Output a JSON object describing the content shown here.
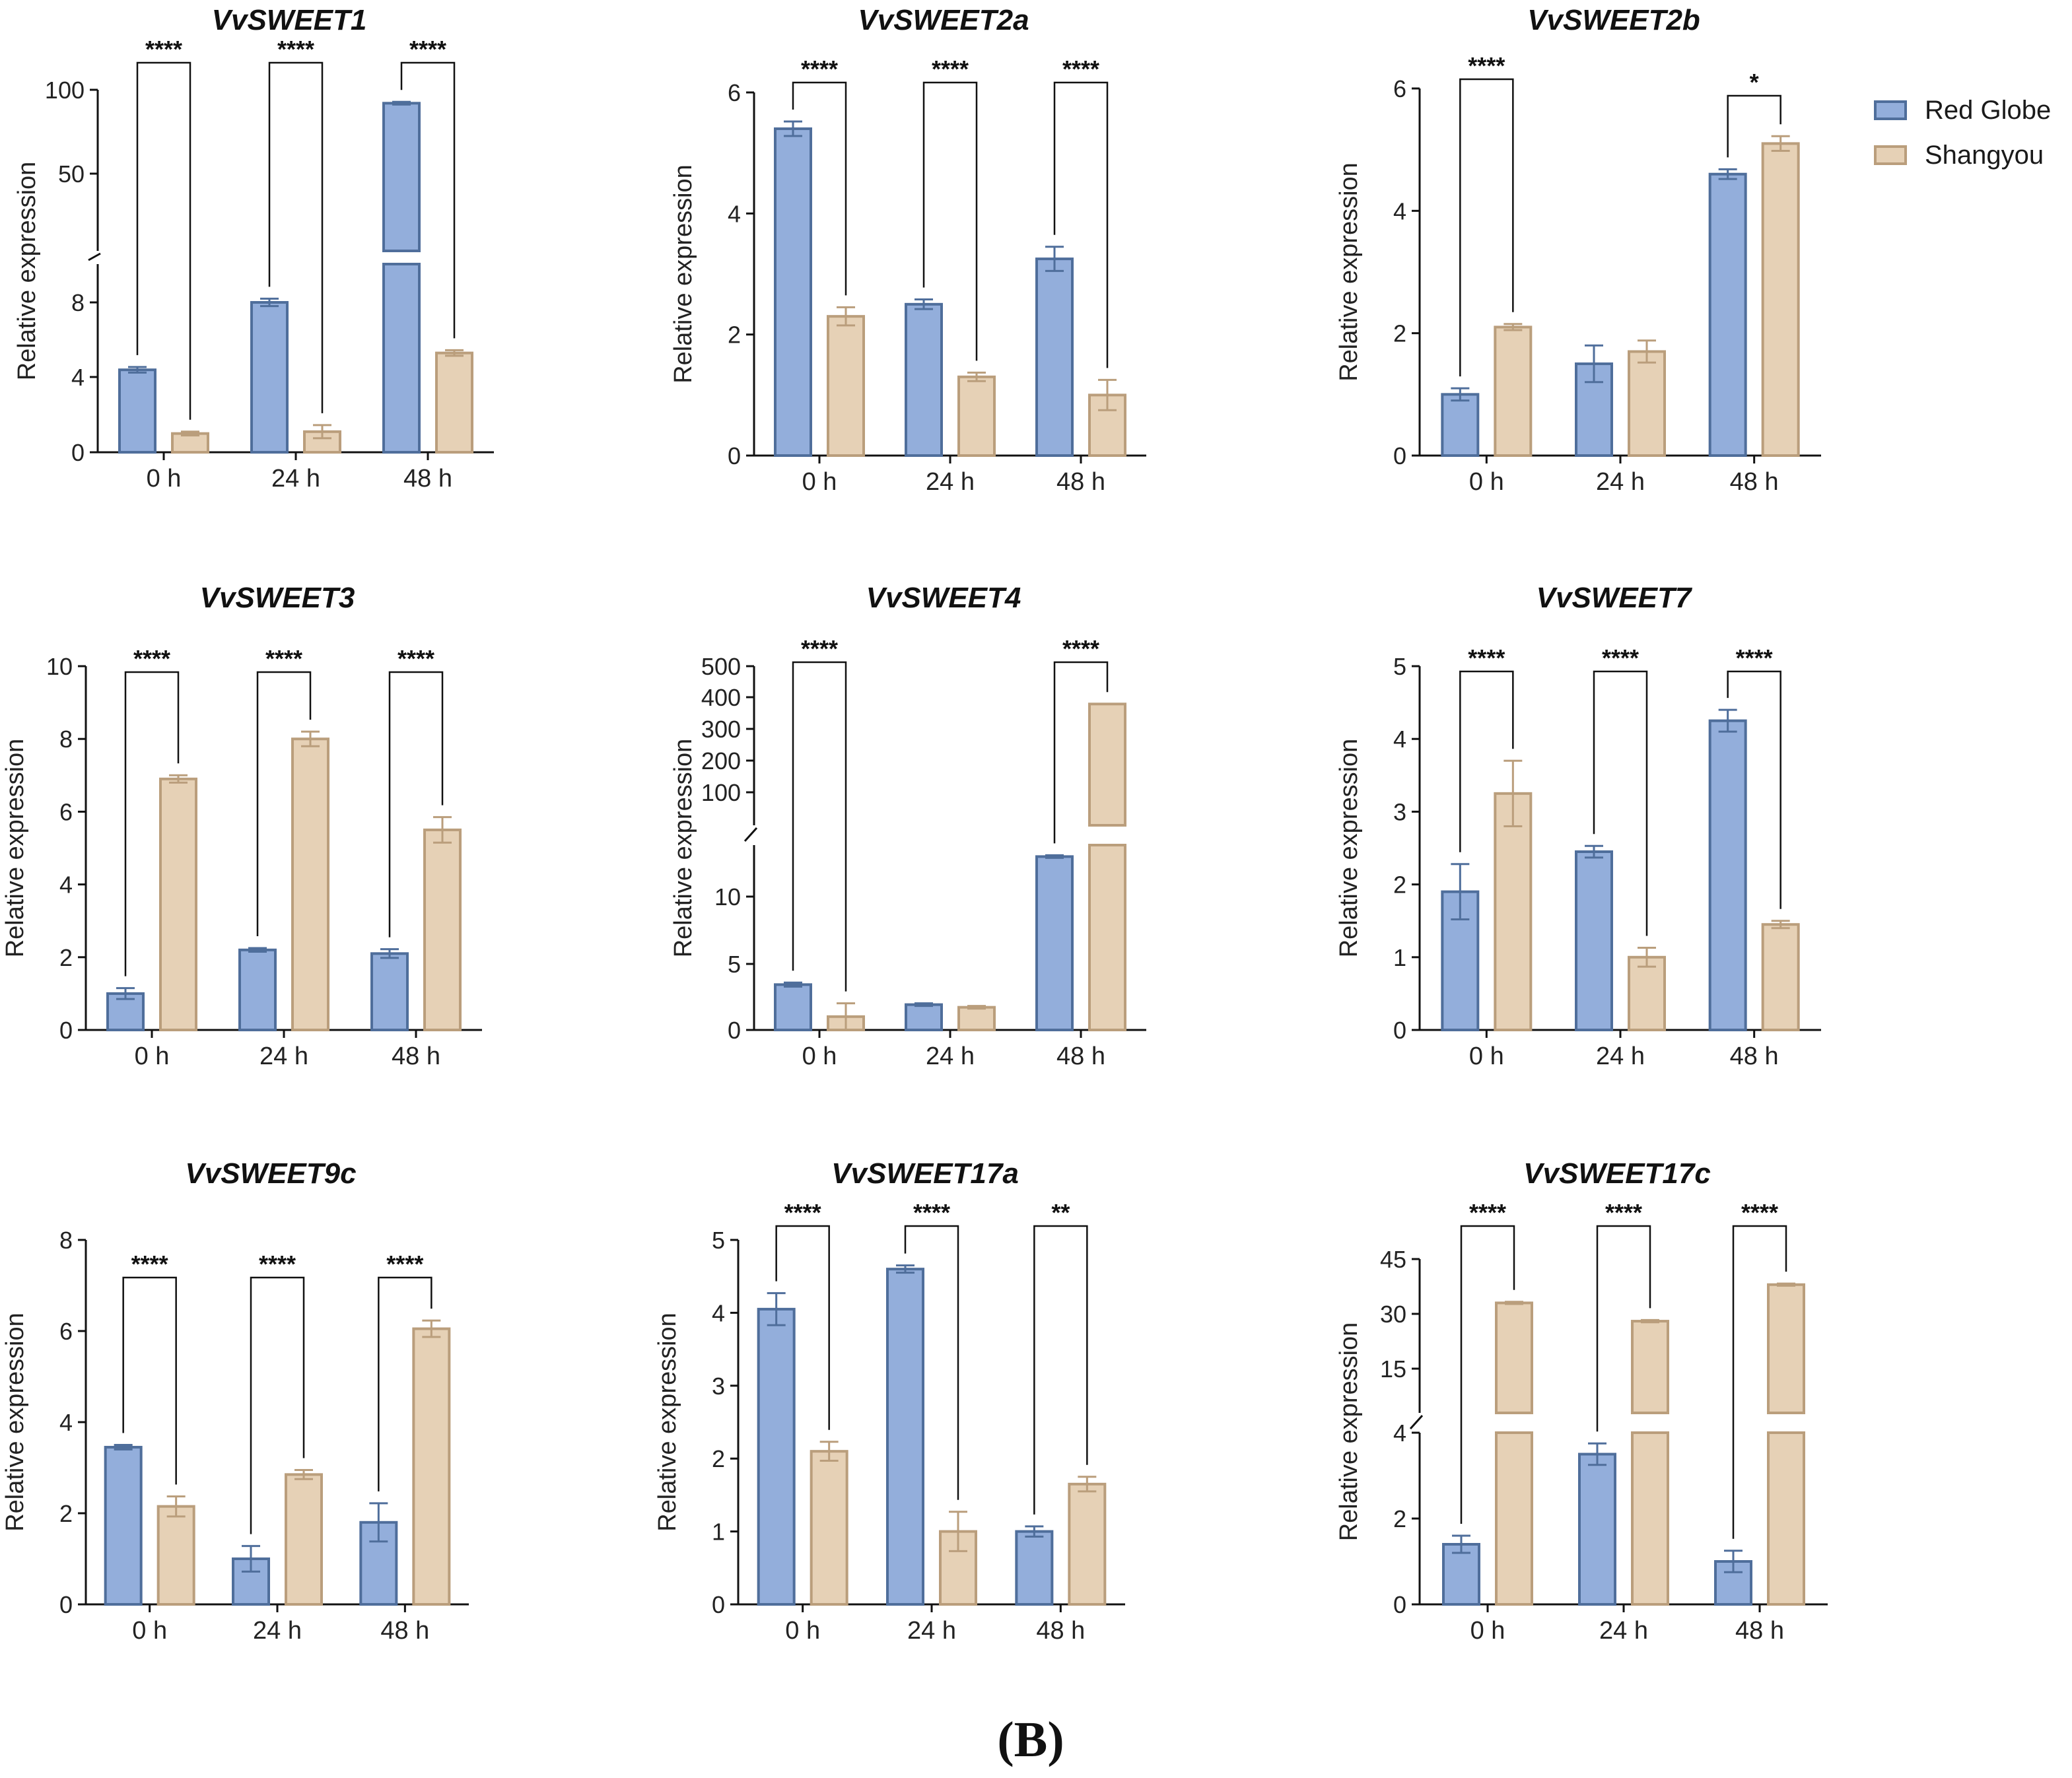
{
  "figure": {
    "panel_label": "(B)"
  },
  "legend": {
    "items": [
      {
        "label": "Red Globe",
        "color": "#93aedb",
        "stroke": "#4f6e9b"
      },
      {
        "label": "Shangyou",
        "color": "#e6d1b6",
        "stroke": "#ba9e7c"
      }
    ]
  },
  "chart_data": [
    {
      "type": "bar",
      "title": "VvSWEET1",
      "xlabel": "",
      "ylabel": "Relative expression",
      "categories": [
        "0 h",
        "24 h",
        "48 h"
      ],
      "series": [
        {
          "name": "Red Globe",
          "values": [
            4.4,
            8.0,
            92
          ],
          "errors": [
            0.15,
            0.2,
            0.8
          ]
        },
        {
          "name": "Shangyou",
          "values": [
            1.0,
            1.1,
            5.3
          ],
          "errors": [
            0.1,
            0.35,
            0.15
          ]
        }
      ],
      "ylim": [
        0,
        100
      ],
      "axis_break": {
        "lower": [
          0,
          10
        ],
        "upper": [
          10,
          100
        ]
      },
      "yticks": [
        0,
        4,
        8,
        50,
        100
      ],
      "significance": [
        "****",
        "****",
        "****"
      ]
    },
    {
      "type": "bar",
      "title": "VvSWEET2a",
      "xlabel": "",
      "ylabel": "Relative expression",
      "categories": [
        "0 h",
        "24 h",
        "48 h"
      ],
      "series": [
        {
          "name": "Red Globe",
          "values": [
            5.4,
            2.5,
            3.25
          ],
          "errors": [
            0.12,
            0.08,
            0.2
          ]
        },
        {
          "name": "Shangyou",
          "values": [
            2.3,
            1.3,
            1.0
          ],
          "errors": [
            0.15,
            0.07,
            0.25
          ]
        }
      ],
      "ylim": [
        0,
        6
      ],
      "yticks": [
        0,
        2,
        4,
        6
      ],
      "significance": [
        "****",
        "****",
        "****"
      ]
    },
    {
      "type": "bar",
      "title": "VvSWEET2b",
      "xlabel": "",
      "ylabel": "Relative expression",
      "categories": [
        "0 h",
        "24 h",
        "48 h"
      ],
      "series": [
        {
          "name": "Red Globe",
          "values": [
            1.0,
            1.5,
            4.6
          ],
          "errors": [
            0.1,
            0.3,
            0.08
          ]
        },
        {
          "name": "Shangyou",
          "values": [
            2.1,
            1.7,
            5.1
          ],
          "errors": [
            0.05,
            0.18,
            0.12
          ]
        }
      ],
      "ylim": [
        0,
        6
      ],
      "yticks": [
        0,
        2,
        4,
        6
      ],
      "significance": [
        "****",
        "",
        "*"
      ]
    },
    {
      "type": "bar",
      "title": "VvSWEET3",
      "xlabel": "",
      "ylabel": "Relative expression",
      "categories": [
        "0 h",
        "24 h",
        "48 h"
      ],
      "series": [
        {
          "name": "Red Globe",
          "values": [
            1.0,
            2.2,
            2.1
          ],
          "errors": [
            0.15,
            0.05,
            0.12
          ]
        },
        {
          "name": "Shangyou",
          "values": [
            6.9,
            8.0,
            5.5
          ],
          "errors": [
            0.1,
            0.2,
            0.35
          ]
        }
      ],
      "ylim": [
        0,
        10
      ],
      "yticks": [
        0,
        2,
        4,
        6,
        8,
        10
      ],
      "significance": [
        "****",
        "****",
        "****"
      ]
    },
    {
      "type": "bar",
      "title": "VvSWEET4",
      "xlabel": "",
      "ylabel": "Relative expression",
      "categories": [
        "0 h",
        "24 h",
        "48 h"
      ],
      "series": [
        {
          "name": "Red Globe",
          "values": [
            3.4,
            1.9,
            13.0
          ],
          "errors": [
            0.15,
            0.1,
            0.1
          ]
        },
        {
          "name": "Shangyou",
          "values": [
            1.0,
            1.7,
            380
          ],
          "errors": [
            1.0,
            0.1,
            0
          ]
        }
      ],
      "ylim": [
        0,
        500
      ],
      "axis_break": {
        "lower": [
          0,
          14
        ],
        "upper": [
          14,
          500
        ]
      },
      "yticks": [
        0,
        5,
        10,
        100,
        200,
        300,
        400,
        500
      ],
      "significance": [
        "****",
        "",
        "****"
      ]
    },
    {
      "type": "bar",
      "title": "VvSWEET7",
      "xlabel": "",
      "ylabel": "Relative expression",
      "categories": [
        "0 h",
        "24 h",
        "48 h"
      ],
      "series": [
        {
          "name": "Red Globe",
          "values": [
            1.9,
            2.45,
            4.25
          ],
          "errors": [
            0.38,
            0.08,
            0.15
          ]
        },
        {
          "name": "Shangyou",
          "values": [
            3.25,
            1.0,
            1.45
          ],
          "errors": [
            0.45,
            0.13,
            0.05
          ]
        }
      ],
      "ylim": [
        0,
        5
      ],
      "yticks": [
        0,
        1,
        2,
        3,
        4,
        5
      ],
      "significance": [
        "****",
        "****",
        "****"
      ]
    },
    {
      "type": "bar",
      "title": "VvSWEET9c",
      "xlabel": "",
      "ylabel": "Relative expression",
      "categories": [
        "0 h",
        "24 h",
        "48 h"
      ],
      "series": [
        {
          "name": "Red Globe",
          "values": [
            3.45,
            1.0,
            1.8
          ],
          "errors": [
            0.05,
            0.28,
            0.42
          ]
        },
        {
          "name": "Shangyou",
          "values": [
            2.15,
            2.85,
            6.05
          ],
          "errors": [
            0.22,
            0.1,
            0.18
          ]
        }
      ],
      "ylim": [
        0,
        8
      ],
      "yticks": [
        0,
        2,
        4,
        6,
        8
      ],
      "significance": [
        "****",
        "****",
        "****"
      ]
    },
    {
      "type": "bar",
      "title": "VvSWEET17a",
      "xlabel": "",
      "ylabel": "Relative expression",
      "categories": [
        "0 h",
        "24 h",
        "48 h"
      ],
      "series": [
        {
          "name": "Red Globe",
          "values": [
            4.05,
            4.6,
            1.0
          ],
          "errors": [
            0.22,
            0.05,
            0.07
          ]
        },
        {
          "name": "Shangyou",
          "values": [
            2.1,
            1.0,
            1.65
          ],
          "errors": [
            0.13,
            0.27,
            0.1
          ]
        }
      ],
      "ylim": [
        0,
        5
      ],
      "yticks": [
        0,
        1,
        2,
        3,
        4,
        5
      ],
      "significance": [
        "****",
        "****",
        "**"
      ]
    },
    {
      "type": "bar",
      "title": "VvSWEET17c",
      "xlabel": "",
      "ylabel": "Relative expression",
      "categories": [
        "0 h",
        "24 h",
        "48 h"
      ],
      "series": [
        {
          "name": "Red Globe",
          "values": [
            1.4,
            3.5,
            1.0
          ],
          "errors": [
            0.2,
            0.25,
            0.25
          ]
        },
        {
          "name": "Shangyou",
          "values": [
            33,
            28,
            38
          ],
          "errors": [
            0.3,
            0.3,
            0.3
          ]
        }
      ],
      "ylim": [
        0,
        45
      ],
      "axis_break": {
        "lower": [
          0,
          4
        ],
        "upper": [
          10,
          45
        ]
      },
      "yticks": [
        0,
        2,
        4,
        15,
        30,
        45
      ],
      "significance": [
        "****",
        "****",
        "****"
      ]
    }
  ]
}
